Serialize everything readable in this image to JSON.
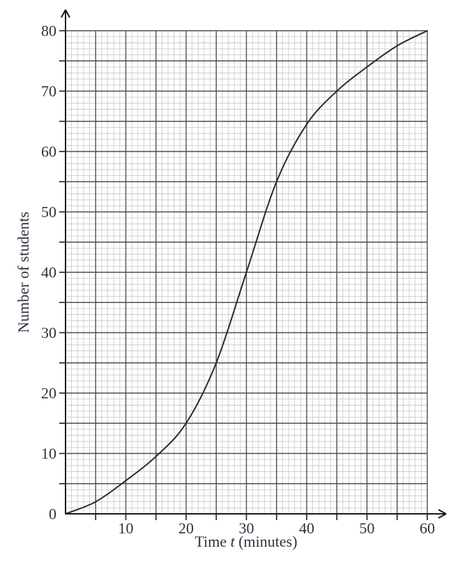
{
  "figure": {
    "ylabel": "Number of students",
    "xlabel_prefix": "Time ",
    "xlabel_var": "t",
    "xlabel_suffix": " (minutes)"
  },
  "chart_data": {
    "type": "line",
    "title": "",
    "xlabel": "Time t (minutes)",
    "ylabel": "Number of students",
    "curve_description": "cumulative frequency S-curve through the listed points",
    "x": [
      0,
      5,
      10,
      15,
      20,
      25,
      30,
      35,
      40,
      45,
      50,
      55,
      60
    ],
    "values": [
      0,
      2,
      5.5,
      9.5,
      15,
      25,
      40,
      55,
      64.5,
      70,
      74,
      77.5,
      80
    ],
    "xlim": [
      0,
      60
    ],
    "ylim": [
      0,
      80
    ],
    "minor_step": 1,
    "major_step": 5,
    "tick_step": 5,
    "x_tick_labels": [
      10,
      20,
      30,
      40,
      50,
      60
    ],
    "y_tick_labels": [
      0,
      10,
      20,
      30,
      40,
      50,
      60,
      70,
      80
    ],
    "grid": true,
    "legend": false,
    "colors": {
      "background": "#ffffff",
      "minor_grid": "#c6c6c6",
      "major_grid": "#4f4f4f",
      "axis": "#1b1b1b",
      "curve": "#2a2a2a",
      "text": "#30313f"
    }
  }
}
